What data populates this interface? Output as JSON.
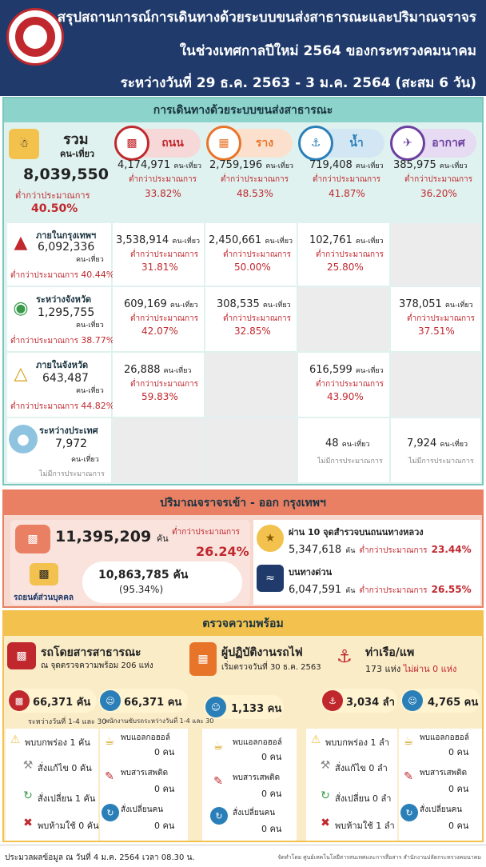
{
  "header": {
    "line1": "สรุปสถานการณ์การเดินทางด้วยระบบขนส่งสาธารณะและปริมาณจราจร",
    "line2": "ในช่วงเทศกาลปีใหม่ 2564 ของกระทรวงคมนาคม",
    "line3": "ระหว่างวันที่ 29 ธ.ค. 2563 - 3 ม.ค. 2564 (สะสม 6 วัน)"
  },
  "public": {
    "title": "การเดินทางด้วยระบบขนส่งสาธารณะ",
    "total": {
      "label": "รวม",
      "unit": "คน-เที่ยว",
      "value": "8,039,550",
      "lower": "ต่ำกว่าประมาณการ",
      "pct": "40.50%"
    },
    "modes": [
      {
        "name": "ถนน",
        "value": "4,174,971",
        "unit": "คน-เที่ยว",
        "lower": "ต่ำกว่าประมาณการ",
        "pct": "33.82%"
      },
      {
        "name": "ราง",
        "value": "2,759,196",
        "unit": "คน-เที่ยว",
        "lower": "ต่ำกว่าประมาณการ",
        "pct": "48.53%"
      },
      {
        "name": "น้ำ",
        "value": "719,408",
        "unit": "คน-เที่ยว",
        "lower": "ต่ำกว่าประมาณการ",
        "pct": "41.87%"
      },
      {
        "name": "อากาศ",
        "value": "385,975",
        "unit": "คน-เที่ยว",
        "lower": "ต่ำกว่าประมาณการ",
        "pct": "36.20%"
      }
    ],
    "rows": [
      {
        "label": "ภายในกรุงเทพฯ",
        "value": "6,092,336",
        "unit": "คน-เที่ยว",
        "lower": "ต่ำกว่าประมาณการ",
        "pct": "40.44%",
        "cells": [
          {
            "v": "3,538,914",
            "u": "คน-เที่ยว",
            "l": "ต่ำกว่าประมาณการ",
            "p": "31.81%"
          },
          {
            "v": "2,450,661",
            "u": "คน-เที่ยว",
            "l": "ต่ำกว่าประมาณการ",
            "p": "50.00%"
          },
          {
            "v": "102,761",
            "u": "คน-เที่ยว",
            "l": "ต่ำกว่าประมาณการ",
            "p": "25.80%"
          }
        ]
      },
      {
        "label": "ระหว่างจังหวัด",
        "value": "1,295,755",
        "unit": "คน-เที่ยว",
        "lower": "ต่ำกว่าประมาณการ",
        "pct": "38.77%",
        "cells": [
          {
            "v": "609,169",
            "u": "คน-เที่ยว",
            "l": "ต่ำกว่าประมาณการ",
            "p": "42.07%"
          },
          {
            "v": "308,535",
            "u": "คน-เที่ยว",
            "l": "ต่ำกว่าประมาณการ",
            "p": "32.85%"
          },
          {
            "v": "378,051",
            "u": "คน-เที่ยว",
            "l": "ต่ำกว่าประมาณการ",
            "p": "37.51%"
          }
        ]
      },
      {
        "label": "ภายในจังหวัด",
        "value": "643,487",
        "unit": "คน-เที่ยว",
        "lower": "ต่ำกว่าประมาณการ",
        "pct": "44.82%",
        "cells": [
          {
            "v": "26,888",
            "u": "คน-เที่ยว",
            "l": "ต่ำกว่าประมาณการ",
            "p": "59.83%"
          },
          {
            "v": "616,599",
            "u": "คน-เที่ยว",
            "l": "ต่ำกว่าประมาณการ",
            "p": "43.90%"
          }
        ]
      },
      {
        "label": "ระหว่างประเทศ",
        "value": "7,972",
        "unit": "คน-เที่ยว",
        "note": "ไม่มีการประมาณการ",
        "cells": [
          {
            "v": "48",
            "u": "คน-เที่ยว",
            "n": "ไม่มีการประมาณการ"
          },
          {
            "v": "7,924",
            "u": "คน-เที่ยว",
            "n": "ไม่มีการประมาณการ"
          }
        ]
      }
    ]
  },
  "traffic": {
    "title": "ปริมาณจราจรเข้า - ออก กรุงเทพฯ",
    "total": "11,395,209",
    "total_unit": "คัน",
    "lower": "ต่ำกว่าประมาณการ",
    "pct": "26.24%",
    "private_label": "รถยนต์ส่วนบุคคล",
    "private": "10,863,785 คัน",
    "private_pct": "(95.34%)",
    "highway_label": "ผ่าน 10 จุดสำรวจบนถนนทางหลวง",
    "highway": "5,347,618",
    "highway_unit": "คัน",
    "highway_lower": "ต่ำกว่าประมาณการ",
    "highway_pct": "23.44%",
    "express_label": "บนทางด่วน",
    "express": "6,047,591",
    "express_unit": "คัน",
    "express_lower": "ต่ำกว่าประมาณการ",
    "express_pct": "26.55%"
  },
  "check": {
    "title": "ตรวจความพร้อม",
    "bus_title": "รถโดยสารสาธารณะ",
    "bus_sub": "ณ จุดตรวจความพร้อม 206 แห่ง",
    "bus_count": "66,371 คัน",
    "bus_count_note": "ระหว่างวันที่ 1-4 และ 30",
    "driver_count": "66,371 คน",
    "driver_note": "พนักงานขับรถระหว่างวันที่ 1-4 และ 30",
    "rail_title": "ผู้ปฏิบัติงานรถไฟ",
    "rail_sub": "เริ่มตรวจวันที่ 30 ธ.ค. 2563",
    "rail_count": "1,133 คน",
    "boat_title": "ท่าเรือ/แพ",
    "boat_sub1": "173 แห่ง",
    "boat_sub2": "ไม่ผ่าน 0 แห่ง",
    "boat_count": "3,034 ลำ",
    "boat_crew": "4,765 คน",
    "bus_items": [
      {
        "t": "พบบกพร่อง 1 คัน"
      },
      {
        "t": "สั่งแก้ไข",
        "v": "0 คัน"
      },
      {
        "t": "สั่งเปลี่ยน 1 คัน"
      },
      {
        "t": "พบห้ามใช้ 0 คัน"
      }
    ],
    "driver_items": [
      {
        "t": "พบแอลกอฮอล์",
        "v": "0 คน"
      },
      {
        "t": "พบสารเสพติด",
        "v": "0 คน"
      },
      {
        "t": "สั่งเปลี่ยนคน",
        "v": "0 คน"
      }
    ],
    "rail_items": [
      {
        "t": "พบแอลกอฮอล์",
        "v": "0 คน"
      },
      {
        "t": "พบสารเสพติด",
        "v": "0 คน"
      },
      {
        "t": "สั่งเปลี่ยนคน",
        "v": "0 คน"
      }
    ],
    "boat_items": [
      {
        "t": "พบบกพร่อง 1 ลำ"
      },
      {
        "t": "สั่งแก้ไข",
        "v": "0 ลำ"
      },
      {
        "t": "สั่งเปลี่ยน",
        "v": "0 ลำ"
      },
      {
        "t": "พบห้ามใช้ 1 ลำ"
      }
    ],
    "crew_items": [
      {
        "t": "พบแอลกอฮอล์",
        "v": "0 คน"
      },
      {
        "t": "พบสารเสพติด",
        "v": "0 คน"
      },
      {
        "t": "สั่งเปลี่ยนคน",
        "v": "0 คน"
      }
    ]
  },
  "footer": {
    "left": "ประมวลผลข้อมูล ณ วันที่ 4 ม.ค. 2564 เวลา 08.30 น.",
    "right": "จัดทำโดย ศูนย์เทคโนโลยีสารสนเทศและการสื่อสาร สำนักงานปลัดกระทรวงคมนาคม"
  },
  "colors": {
    "road": "#c0282e",
    "rail": "#e8742a",
    "water": "#2a7fb8",
    "air": "#6b3fa0",
    "header": "#1f3a6b"
  }
}
